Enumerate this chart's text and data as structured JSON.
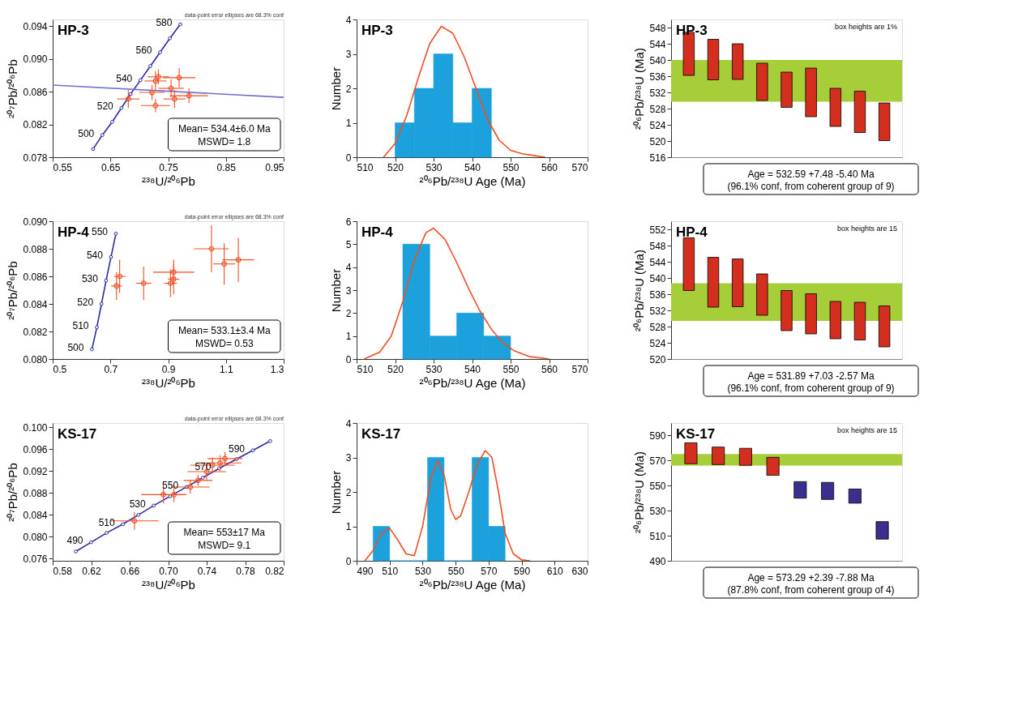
{
  "chart_data": [
    {
      "type": "scatter",
      "title": "HP-3",
      "xlabel": "²³⁸U/²⁰⁶Pb",
      "ylabel": "²⁰⁷Pb/²⁰⁶Pb",
      "xlim": [
        0.55,
        0.95
      ],
      "xticks": [
        0.55,
        0.65,
        0.75,
        0.85,
        0.95
      ],
      "ylim": [
        0.078,
        0.0948
      ],
      "yticks": [
        0.078,
        0.082,
        0.086,
        {
          "value": 0.09,
          "label": "0.090"
        },
        0.094
      ],
      "grid": false,
      "series": [
        {
          "type": "line",
          "color": "#2b2ba0",
          "marker": "circle",
          "x": [
            0.62,
            0.636,
            0.653,
            0.669,
            0.685,
            0.702,
            0.719,
            0.736,
            0.753,
            0.771
          ],
          "values": [
            0.079,
            0.0807,
            0.0823,
            0.084,
            0.0857,
            0.0874,
            0.0891,
            0.0908,
            0.0925,
            0.0942
          ]
        },
        {
          "type": "line",
          "color": "#7070d0",
          "x": [
            0.55,
            0.95
          ],
          "values": [
            0.0868,
            0.0853
          ]
        },
        {
          "type": "scatter",
          "color": "#f04e23",
          "x": [
            0.681,
            0.722,
            0.728,
            0.733,
            0.769,
            0.728,
            0.755,
            0.761,
            0.786
          ],
          "values": [
            0.0851,
            0.0859,
            0.0873,
            0.0878,
            0.0877,
            0.0843,
            0.0864,
            0.0851,
            0.0855
          ],
          "xerrors": [
            0.019,
            0.022,
            0.019,
            0.019,
            0.028,
            0.025,
            0.022,
            0.019,
            0.033
          ],
          "errors": [
            0.0011,
            0.0009,
            0.0012,
            0.0009,
            0.0012,
            0.0008,
            0.0011,
            0.0011,
            0.0009
          ]
        }
      ],
      "annotations": [
        "data-point error ellipses are 68.3% conf",
        {
          "text": "500",
          "x": 0.636,
          "y": 0.0807
        },
        {
          "text": "520",
          "x": 0.669,
          "y": 0.084
        },
        {
          "text": "540",
          "x": 0.702,
          "y": 0.0874
        },
        {
          "text": "560",
          "x": 0.736,
          "y": 0.0908
        },
        {
          "text": "580",
          "x": 0.771,
          "y": 0.0942
        },
        "Mean= 534.4±6.0 Ma",
        "MSWD= 1.8"
      ]
    },
    {
      "type": "histogram",
      "title": "HP-3",
      "xlabel": "²⁰⁶Pb/²³⁸U Age (Ma)",
      "ylabel": "Number",
      "xlim": [
        510,
        570
      ],
      "xticks": [
        510,
        520,
        530,
        540,
        550,
        560,
        570
      ],
      "ylim": [
        0,
        4
      ],
      "yticks": [
        0,
        1,
        2,
        3,
        4
      ],
      "grid": false,
      "color": "#1da1dc",
      "bins": [
        520,
        525,
        530,
        535,
        540,
        545
      ],
      "values": [
        1,
        2,
        3,
        1,
        2
      ],
      "series": [
        {
          "type": "line",
          "color": "#f04e23",
          "x": [
            517,
            520,
            523,
            526,
            529,
            532,
            535,
            538,
            541,
            544,
            547,
            550,
            553,
            556,
            559
          ],
          "values": [
            0,
            0.4,
            1.2,
            2.3,
            3.3,
            3.8,
            3.6,
            2.9,
            2.0,
            1.1,
            0.5,
            0.2,
            0.1,
            0.05,
            0
          ]
        }
      ]
    },
    {
      "type": "bar",
      "title": "HP-3",
      "ylabel": "²⁰⁶Pb/²³⁸U (Ma)",
      "ylim": [
        516,
        550
      ],
      "yticks": [
        516,
        520,
        524,
        528,
        532,
        536,
        540,
        544,
        548
      ],
      "grid": false,
      "tick_labels": "y",
      "categories": [
        null,
        null,
        null,
        null,
        null,
        null,
        null,
        null,
        null
      ],
      "base": [
        536.2,
        535.1,
        535.2,
        530.0,
        528.3,
        526.0,
        523.6,
        522.1,
        520.1
      ],
      "values": [
        10.6,
        10.0,
        8.8,
        9.2,
        8.7,
        12.0,
        9.4,
        10.2,
        9.3
      ],
      "colors": [
        "#d42e1f",
        "#d42e1f",
        "#d42e1f",
        "#d42e1f",
        "#d42e1f",
        "#d42e1f",
        "#d42e1f",
        "#d42e1f",
        "#d42e1f"
      ],
      "bands": [
        {
          "axis": "y",
          "from": 529.7,
          "to": 540.0,
          "color": "#a6ce39"
        }
      ],
      "annotations": [
        "box heights are 1%",
        "Age  = 532.59   +7.48   -5.40  Ma",
        "(96.1% conf, from coherent group of 9)"
      ]
    },
    {
      "type": "scatter",
      "title": "HP-4",
      "xlabel": "²³⁸U/²⁰⁶Pb",
      "ylabel": "²⁰⁷Pb/²⁰⁶Pb",
      "xlim": [
        0.5,
        1.3
      ],
      "xticks": [
        0.5,
        0.7,
        0.9,
        1.1,
        1.3
      ],
      "ylim": [
        0.08,
        0.09
      ],
      "yticks": [
        {
          "value": 0.08,
          "label": "0.080"
        },
        0.082,
        0.084,
        0.086,
        0.088,
        {
          "value": 0.09,
          "label": "0.090"
        }
      ],
      "grid": false,
      "series": [
        {
          "type": "line",
          "color": "#2b2ba0",
          "marker": "circle",
          "x": [
            0.636,
            0.653,
            0.669,
            0.685,
            0.702,
            0.719
          ],
          "values": [
            0.0807,
            0.0823,
            0.084,
            0.0857,
            0.0874,
            0.0891
          ]
        },
        {
          "type": "scatter",
          "color": "#f04e23",
          "x": [
            0.721,
            0.732,
            0.815,
            0.919,
            0.908,
            0.919,
            1.05,
            1.094,
            1.143
          ],
          "values": [
            0.0853,
            0.086,
            0.0855,
            0.0863,
            0.0855,
            0.0858,
            0.088,
            0.0869,
            0.0872
          ],
          "xerrors": [
            0.019,
            0.02,
            0.027,
            0.071,
            0.022,
            0.02,
            0.06,
            0.038,
            0.055
          ],
          "errors": [
            0.001,
            0.0012,
            0.0012,
            0.0009,
            0.001,
            0.0011,
            0.0017,
            0.0015,
            0.0016
          ]
        }
      ],
      "annotations": [
        "data-point error ellipses are 68.3% conf",
        {
          "text": "500",
          "x": 0.636,
          "y": 0.0807
        },
        {
          "text": "510",
          "x": 0.653,
          "y": 0.0823
        },
        {
          "text": "520",
          "x": 0.669,
          "y": 0.084
        },
        {
          "text": "530",
          "x": 0.685,
          "y": 0.0857
        },
        {
          "text": "540",
          "x": 0.702,
          "y": 0.0874
        },
        {
          "text": "550",
          "x": 0.719,
          "y": 0.0891
        },
        "Mean= 533.1±3.4 Ma",
        "MSWD= 0.53"
      ]
    },
    {
      "type": "histogram",
      "title": "HP-4",
      "xlabel": "²⁰⁶Pb/²³⁸U Age (Ma)",
      "ylabel": "Number",
      "xlim": [
        510,
        570
      ],
      "xticks": [
        510,
        520,
        530,
        540,
        550,
        560,
        570
      ],
      "ylim": [
        0,
        6
      ],
      "yticks": [
        0,
        1,
        2,
        3,
        4,
        5,
        6
      ],
      "grid": false,
      "color": "#1da1dc",
      "bins": [
        522,
        529,
        536,
        543,
        550
      ],
      "values": [
        5,
        1,
        2,
        1
      ],
      "series": [
        {
          "type": "line",
          "color": "#f04e23",
          "x": [
            512,
            516,
            519,
            522,
            525,
            528,
            530,
            533,
            536,
            539,
            542,
            545,
            548,
            551,
            555,
            560
          ],
          "values": [
            0,
            0.3,
            1.0,
            2.5,
            4.3,
            5.5,
            5.7,
            5.2,
            4.2,
            3.1,
            2.1,
            1.3,
            0.7,
            0.35,
            0.1,
            0
          ]
        }
      ]
    },
    {
      "type": "bar",
      "title": "HP-4",
      "ylabel": "²⁰⁶Pb/²³⁸U (Ma)",
      "ylim": [
        520,
        554
      ],
      "yticks": [
        520,
        524,
        528,
        532,
        536,
        540,
        544,
        548,
        552
      ],
      "grid": false,
      "tick_labels": "y",
      "categories": [
        null,
        null,
        null,
        null,
        null,
        null,
        null,
        null,
        null
      ],
      "base": [
        536.9,
        532.8,
        532.9,
        530.8,
        527.0,
        526.2,
        525.0,
        524.7,
        523.0
      ],
      "values": [
        13.0,
        12.3,
        11.8,
        10.2,
        9.9,
        9.9,
        9.2,
        9.3,
        10.1
      ],
      "colors": [
        "#d42e1f",
        "#d42e1f",
        "#d42e1f",
        "#d42e1f",
        "#d42e1f",
        "#d42e1f",
        "#d42e1f",
        "#d42e1f",
        "#d42e1f"
      ],
      "bands": [
        {
          "axis": "y",
          "from": 529.4,
          "to": 538.7,
          "color": "#a6ce39"
        }
      ],
      "annotations": [
        "box heights are 15",
        "Age  = 531.89   +7.03   -2.57  Ma",
        "(96.1% conf, from coherent group of 9)"
      ]
    },
    {
      "type": "scatter",
      "title": "KS-17",
      "xlabel": "²³⁸U/²⁰⁶Pb",
      "ylabel": "²⁰⁷Pb/²⁰⁶Pb",
      "xlim": [
        0.58,
        0.82
      ],
      "xticks": [
        0.58,
        0.62,
        0.66,
        {
          "value": 0.7,
          "label": "0.70"
        },
        0.74,
        0.78,
        0.82
      ],
      "ylim": [
        0.0756,
        0.1008
      ],
      "yticks": [
        0.076,
        {
          "value": 0.08,
          "label": "0.080"
        },
        0.084,
        0.088,
        0.092,
        0.096,
        {
          "value": 0.1,
          "label": "0.100"
        }
      ],
      "grid": false,
      "series": [
        {
          "type": "line",
          "color": "#2b2ba0",
          "marker": "circle",
          "x": [
            0.604,
            0.62,
            0.636,
            0.653,
            0.669,
            0.685,
            0.702,
            0.719,
            0.736,
            0.753,
            0.771,
            0.788,
            0.806
          ],
          "values": [
            0.0773,
            0.079,
            0.0807,
            0.0823,
            0.084,
            0.0857,
            0.0874,
            0.0891,
            0.0908,
            0.0925,
            0.0942,
            0.0958,
            0.0975
          ]
        },
        {
          "type": "scatter",
          "color": "#f04e23",
          "x": [
            0.665,
            0.695,
            0.706,
            0.723,
            0.74,
            0.746,
            0.754,
            0.759,
            0.731
          ],
          "values": [
            0.0829,
            0.0877,
            0.0877,
            0.0891,
            0.0919,
            0.0931,
            0.0935,
            0.0943,
            0.0903
          ],
          "xerrors": [
            0.025,
            0.023,
            0.013,
            0.02,
            0.02,
            0.023,
            0.022,
            0.018,
            0.015
          ],
          "errors": [
            0.0016,
            0.0016,
            0.0014,
            0.0012,
            0.0016,
            0.0014,
            0.0014,
            0.0012,
            0.001
          ]
        }
      ],
      "annotations": [
        "data-point error ellipses are 68.3% conf",
        {
          "text": "490",
          "x": 0.62,
          "y": 0.079
        },
        {
          "text": "510",
          "x": 0.653,
          "y": 0.0823
        },
        {
          "text": "530",
          "x": 0.685,
          "y": 0.0857
        },
        {
          "text": "550",
          "x": 0.719,
          "y": 0.0891
        },
        {
          "text": "570",
          "x": 0.753,
          "y": 0.0925
        },
        {
          "text": "590",
          "x": 0.788,
          "y": 0.0958
        },
        "Mean= 553±17 Ma",
        "MSWD= 9.1"
      ]
    },
    {
      "type": "histogram",
      "title": "KS-17",
      "xlabel": "²⁰⁶Pb/²³⁸U Age (Ma)",
      "ylabel": "Number",
      "xlim": [
        490,
        630
      ],
      "xticks": [
        490,
        510,
        530,
        550,
        570,
        590,
        610,
        630
      ],
      "ylim": [
        0,
        4
      ],
      "yticks": [
        0,
        1,
        2,
        3,
        4
      ],
      "grid": false,
      "color": "#1da1dc",
      "bins": [
        500,
        510,
        533,
        543,
        560,
        570,
        580
      ],
      "values": [
        1,
        0,
        3,
        0,
        3,
        1
      ],
      "series": [
        {
          "type": "line",
          "color": "#f04e23",
          "x": [
            495,
            500,
            505,
            510,
            515,
            520,
            525,
            530,
            535,
            539,
            543,
            547,
            550,
            553,
            558,
            563,
            568,
            572,
            576,
            580,
            585,
            590,
            595
          ],
          "values": [
            0,
            0.3,
            0.8,
            0.95,
            0.6,
            0.2,
            0.15,
            1.0,
            2.4,
            2.9,
            2.5,
            1.5,
            1.2,
            1.3,
            2.0,
            2.8,
            3.2,
            3.0,
            2.0,
            0.8,
            0.2,
            0.03,
            0
          ]
        }
      ]
    },
    {
      "type": "bar",
      "title": "KS-17",
      "ylabel": "²⁰⁶Pb/²³⁸U (Ma)",
      "ylim": [
        490,
        600
      ],
      "yticks": [
        490,
        510,
        530,
        550,
        570,
        590
      ],
      "grid": false,
      "tick_labels": "y",
      "categories": [
        null,
        null,
        null,
        null,
        null,
        null,
        null,
        null
      ],
      "base": [
        567.5,
        566.8,
        566.2,
        558.3,
        540.0,
        539.0,
        536.0,
        507.3
      ],
      "values": [
        16.7,
        14.0,
        13.6,
        14.3,
        13.2,
        13.6,
        11.3,
        14.0
      ],
      "colors": [
        "#d42e1f",
        "#d42e1f",
        "#d42e1f",
        "#d42e1f",
        "#3a2e8e",
        "#3a2e8e",
        "#3a2e8e",
        "#3a2e8e"
      ],
      "bands": [
        {
          "axis": "y",
          "from": 566.0,
          "to": 575.3,
          "color": "#a6ce39"
        }
      ],
      "annotations": [
        "box heights are 15",
        "Age  = 573.29   +2.39   -7.88  Ma",
        "(87.8% conf, from coherent group of 4)"
      ]
    }
  ]
}
